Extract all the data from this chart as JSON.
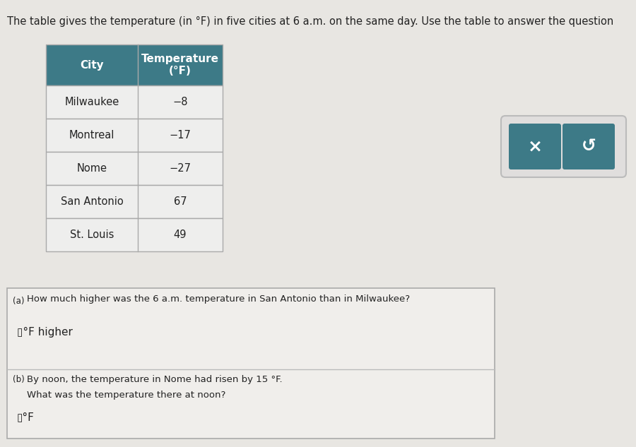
{
  "title_text": "The table gives the temperature (in °F) in five cities at 6 a.m. on the same day. Use the table to answer the question",
  "table_header": [
    "City",
    "Temperature\n(°F)"
  ],
  "table_rows": [
    [
      "Milwaukee",
      "−8"
    ],
    [
      "Montreal",
      "−17"
    ],
    [
      "Nome",
      "−27"
    ],
    [
      "San Antonio",
      "67"
    ],
    [
      "St. Louis",
      "49"
    ]
  ],
  "header_bg": "#3d7a87",
  "header_text_color": "#ffffff",
  "row_bg": "#eeeeed",
  "border_color": "#aaaaaa",
  "bg_color": "#c8c8c8",
  "page_bg": "#e8e6e2",
  "question_box_bg": "#f0eeeb",
  "question_box_border": "#aaaaaa",
  "question_a_label": "(a)",
  "question_a_text": "How much higher was the 6 a.m. temperature in San Antonio than in Milwaukee?",
  "question_a_answer_placeholder": "▯°F higher",
  "question_b_label": "(b)",
  "question_b_text": "By noon, the temperature in Nome had risen by 15 °F.",
  "question_b_text2": "What was the temperature there at noon?",
  "question_b_answer_placeholder": "▯°F",
  "button_bg": "#3d7a87",
  "button_x_text": "×",
  "button_s_text": "↺",
  "button_outer_bg": "#e0dedd",
  "figsize": [
    9.0,
    6.33
  ],
  "dpi": 100
}
